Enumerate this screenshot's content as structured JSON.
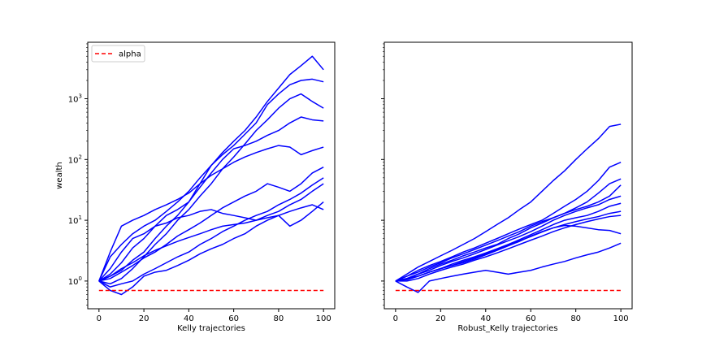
{
  "chart_data": [
    {
      "type": "line",
      "xlabel": "Kelly trajectories",
      "ylabel": "wealth",
      "yscale": "log",
      "xlim": [
        -5,
        105
      ],
      "ylim": [
        0.35,
        8500
      ],
      "xticks": [
        0,
        20,
        40,
        60,
        80,
        100
      ],
      "yticks": [
        {
          "value": 1,
          "base": "10",
          "exp": "0"
        },
        {
          "value": 10,
          "base": "10",
          "exp": "1"
        },
        {
          "value": 100,
          "base": "10",
          "exp": "2"
        },
        {
          "value": 1000,
          "base": "10",
          "exp": "3"
        }
      ],
      "legend": {
        "position": "upper-left",
        "entries": [
          {
            "label": "alpha",
            "color": "#ff0000",
            "style": "dashed"
          }
        ]
      },
      "alpha_value": 0.7,
      "series_color": "#0000ff",
      "trajectories": [
        {
          "x": [
            0,
            5,
            10,
            15,
            20,
            25,
            30,
            35,
            40,
            45,
            50,
            55,
            60,
            65,
            70,
            75,
            80,
            85,
            90,
            95,
            100
          ],
          "y": [
            1,
            1.2,
            1.5,
            2.2,
            3,
            5,
            8,
            12,
            20,
            40,
            80,
            130,
            200,
            300,
            500,
            900,
            1500,
            2500,
            3500,
            5000,
            3000
          ]
        },
        {
          "x": [
            0,
            5,
            10,
            15,
            20,
            25,
            30,
            35,
            40,
            45,
            50,
            55,
            60,
            65,
            70,
            75,
            80,
            85,
            90,
            95,
            100
          ],
          "y": [
            1,
            2.5,
            4,
            6,
            8,
            10,
            14,
            20,
            30,
            50,
            80,
            120,
            170,
            260,
            400,
            800,
            1200,
            1700,
            2000,
            2100,
            1900
          ]
        },
        {
          "x": [
            0,
            5,
            10,
            15,
            20,
            25,
            30,
            35,
            40,
            45,
            50,
            55,
            60,
            65,
            70,
            75,
            80,
            85,
            90,
            95,
            100
          ],
          "y": [
            1,
            0.9,
            1.1,
            1.6,
            2.5,
            4,
            6,
            10,
            15,
            25,
            40,
            70,
            110,
            180,
            300,
            450,
            700,
            1000,
            1200,
            900,
            700
          ]
        },
        {
          "x": [
            0,
            5,
            10,
            15,
            20,
            25,
            30,
            35,
            40,
            45,
            50,
            55,
            60,
            65,
            70,
            75,
            80,
            85,
            90,
            95,
            100
          ],
          "y": [
            1,
            1.3,
            2,
            3.5,
            5,
            8,
            12,
            15,
            20,
            35,
            60,
            100,
            150,
            170,
            200,
            250,
            300,
            400,
            500,
            450,
            430
          ]
        },
        {
          "x": [
            0,
            5,
            10,
            15,
            20,
            25,
            30,
            35,
            40,
            45,
            50,
            55,
            60,
            65,
            70,
            75,
            80,
            85,
            90,
            95,
            100
          ],
          "y": [
            1,
            3,
            8,
            10,
            12,
            15,
            18,
            22,
            28,
            40,
            55,
            70,
            90,
            110,
            130,
            150,
            170,
            160,
            120,
            140,
            160
          ]
        },
        {
          "x": [
            0,
            5,
            10,
            15,
            20,
            25,
            30,
            35,
            40,
            45,
            50,
            55,
            60,
            65,
            70,
            75,
            80,
            85,
            90,
            95,
            100
          ],
          "y": [
            1,
            1.1,
            1.4,
            1.8,
            2.4,
            3,
            4,
            5.5,
            7,
            9,
            12,
            16,
            20,
            25,
            30,
            40,
            35,
            30,
            40,
            60,
            75
          ]
        },
        {
          "x": [
            0,
            5,
            10,
            15,
            20,
            25,
            30,
            35,
            40,
            45,
            50,
            55,
            60,
            65,
            70,
            75,
            80,
            85,
            90,
            95,
            100
          ],
          "y": [
            1,
            0.8,
            0.9,
            1,
            1.3,
            1.6,
            2,
            2.5,
            3,
            4,
            5,
            6.5,
            8,
            10,
            12,
            14,
            18,
            22,
            28,
            38,
            50
          ]
        },
        {
          "x": [
            0,
            5,
            10,
            15,
            20,
            25,
            30,
            35,
            40,
            45,
            50,
            55,
            60,
            65,
            70,
            75,
            80,
            85,
            90,
            95,
            100
          ],
          "y": [
            1,
            1.6,
            3,
            5,
            6,
            8,
            9,
            11,
            12,
            14,
            15,
            13,
            12,
            11,
            10,
            12,
            14,
            18,
            22,
            30,
            40
          ]
        },
        {
          "x": [
            0,
            5,
            10,
            15,
            20,
            25,
            30,
            35,
            40,
            45,
            50,
            55,
            60,
            65,
            70,
            75,
            80,
            85,
            90,
            95,
            100
          ],
          "y": [
            1,
            1.2,
            1.6,
            2,
            2.6,
            3.2,
            3.8,
            4.5,
            5.2,
            6,
            7,
            8,
            8.5,
            9,
            10,
            11,
            12,
            14,
            16,
            18,
            15
          ]
        },
        {
          "x": [
            0,
            5,
            10,
            15,
            20,
            25,
            30,
            35,
            40,
            45,
            50,
            55,
            60,
            65,
            70,
            75,
            80,
            85,
            90,
            95,
            100
          ],
          "y": [
            1,
            0.7,
            0.6,
            0.8,
            1.2,
            1.4,
            1.5,
            1.8,
            2.2,
            2.8,
            3.4,
            4,
            5,
            6,
            8,
            10,
            12,
            8,
            10,
            14,
            20
          ]
        }
      ]
    },
    {
      "type": "line",
      "xlabel": "Robust_Kelly trajectories",
      "ylabel": "",
      "yscale": "log",
      "xlim": [
        -5,
        105
      ],
      "ylim": [
        0.35,
        8500
      ],
      "xticks": [
        0,
        20,
        40,
        60,
        80,
        100
      ],
      "alpha_value": 0.7,
      "series_color": "#0000ff",
      "trajectories": [
        {
          "x": [
            0,
            5,
            10,
            15,
            20,
            25,
            30,
            35,
            40,
            45,
            50,
            55,
            60,
            65,
            70,
            75,
            80,
            85,
            90,
            95,
            100
          ],
          "y": [
            1,
            1.3,
            1.7,
            2.1,
            2.6,
            3.2,
            4,
            5,
            6.5,
            8.5,
            11,
            15,
            20,
            30,
            45,
            65,
            100,
            150,
            220,
            350,
            380
          ]
        },
        {
          "x": [
            0,
            5,
            10,
            15,
            20,
            25,
            30,
            35,
            40,
            45,
            50,
            55,
            60,
            65,
            70,
            75,
            80,
            85,
            90,
            95,
            100
          ],
          "y": [
            1,
            1.2,
            1.5,
            1.8,
            2.1,
            2.5,
            3,
            3.5,
            4.2,
            5,
            6,
            7.2,
            8.5,
            10,
            13,
            17,
            22,
            30,
            45,
            75,
            90
          ]
        },
        {
          "x": [
            0,
            5,
            10,
            15,
            20,
            25,
            30,
            35,
            40,
            45,
            50,
            55,
            60,
            65,
            70,
            75,
            80,
            85,
            90,
            95,
            100
          ],
          "y": [
            1,
            1.1,
            1.3,
            1.6,
            1.9,
            2.2,
            2.6,
            3,
            3.5,
            4,
            5,
            6,
            7.5,
            9,
            11,
            13,
            16,
            20,
            28,
            40,
            48
          ]
        },
        {
          "x": [
            0,
            5,
            10,
            15,
            20,
            25,
            30,
            35,
            40,
            45,
            50,
            55,
            60,
            65,
            70,
            75,
            80,
            85,
            90,
            95,
            100
          ],
          "y": [
            1,
            1.2,
            1.4,
            1.7,
            2,
            2.4,
            2.8,
            3.3,
            3.9,
            4.6,
            5.5,
            6.5,
            8,
            9.5,
            11,
            13,
            15,
            17,
            20,
            25,
            38
          ]
        },
        {
          "x": [
            0,
            5,
            10,
            15,
            20,
            25,
            30,
            35,
            40,
            45,
            50,
            55,
            60,
            65,
            70,
            75,
            80,
            85,
            90,
            95,
            100
          ],
          "y": [
            1,
            1.1,
            1.3,
            1.5,
            1.8,
            2.1,
            2.4,
            2.8,
            3.3,
            3.9,
            4.6,
            5.4,
            6.5,
            8,
            10,
            12,
            14,
            16,
            18,
            22,
            25
          ]
        },
        {
          "x": [
            0,
            5,
            10,
            15,
            20,
            25,
            30,
            35,
            40,
            45,
            50,
            55,
            60,
            65,
            70,
            75,
            80,
            85,
            90,
            95,
            100
          ],
          "y": [
            1,
            1.05,
            1.2,
            1.4,
            1.6,
            1.9,
            2.2,
            2.5,
            2.9,
            3.4,
            4,
            4.8,
            5.8,
            7,
            8.5,
            10,
            11,
            12,
            14,
            17,
            19
          ]
        },
        {
          "x": [
            0,
            5,
            10,
            15,
            20,
            25,
            30,
            35,
            40,
            45,
            50,
            55,
            60,
            65,
            70,
            75,
            80,
            85,
            90,
            95,
            100
          ],
          "y": [
            1,
            1.1,
            1.2,
            1.4,
            1.6,
            1.8,
            2,
            2.3,
            2.7,
            3.2,
            3.8,
            4.5,
            5.5,
            6.5,
            7.5,
            8.5,
            9.5,
            10.5,
            11.5,
            13,
            14
          ]
        },
        {
          "x": [
            0,
            5,
            10,
            15,
            20,
            25,
            30,
            35,
            40,
            45,
            50,
            55,
            60,
            65,
            70,
            75,
            80,
            85,
            90,
            95,
            100
          ],
          "y": [
            1,
            1,
            1.1,
            1.3,
            1.5,
            1.7,
            1.9,
            2.2,
            2.5,
            2.9,
            3.4,
            4,
            4.7,
            5.5,
            6.5,
            7.5,
            8.5,
            9.5,
            10.5,
            11.5,
            12
          ]
        },
        {
          "x": [
            0,
            5,
            10,
            15,
            20,
            25,
            30,
            35,
            40,
            45,
            50,
            55,
            60,
            65,
            70,
            75,
            80,
            85,
            90,
            95,
            100
          ],
          "y": [
            1,
            1.1,
            1.2,
            1.4,
            1.6,
            1.8,
            2.1,
            2.4,
            2.8,
            3.3,
            3.9,
            4.6,
            5.4,
            6.4,
            7.5,
            8.2,
            8,
            7.5,
            7,
            6.8,
            6
          ]
        },
        {
          "x": [
            0,
            5,
            10,
            15,
            20,
            25,
            30,
            35,
            40,
            45,
            50,
            55,
            60,
            65,
            70,
            75,
            80,
            85,
            90,
            95,
            100
          ],
          "y": [
            1,
            0.8,
            0.65,
            1,
            1.1,
            1.2,
            1.3,
            1.4,
            1.5,
            1.4,
            1.3,
            1.4,
            1.5,
            1.7,
            1.9,
            2.1,
            2.4,
            2.7,
            3,
            3.5,
            4.2
          ]
        }
      ]
    }
  ]
}
